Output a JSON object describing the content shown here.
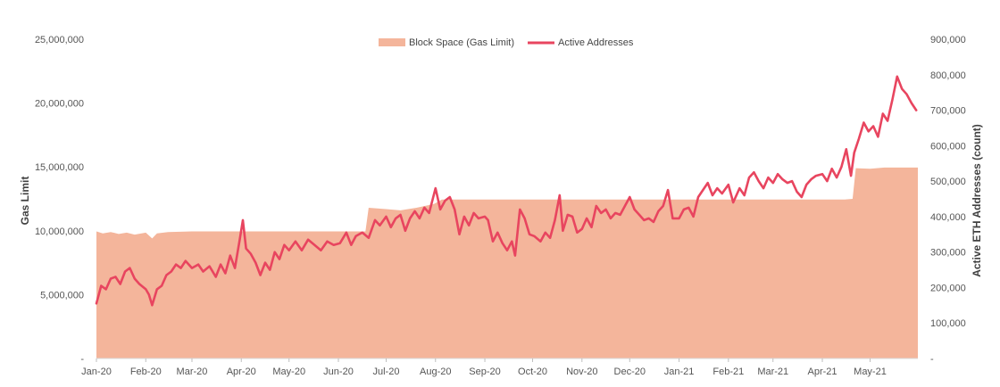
{
  "chart_data": {
    "type": "area",
    "legend_position": "top",
    "grid": false,
    "x_ticks": [
      "Jan-20",
      "Feb-20",
      "Mar-20",
      "Apr-20",
      "May-20",
      "Jun-20",
      "Jul-20",
      "Aug-20",
      "Sep-20",
      "Oct-20",
      "Nov-20",
      "Dec-20",
      "Jan-21",
      "Feb-21",
      "Mar-21",
      "Apr-21",
      "May-21"
    ],
    "x_range": [
      "2020-01-01",
      "2021-05-31"
    ],
    "y_left": {
      "label": "Gas Limit",
      "range": [
        0,
        25000000
      ],
      "ticks": [
        "-",
        "5,000,000",
        "10,000,000",
        "15,000,000",
        "20,000,000",
        "25,000,000"
      ]
    },
    "y_right": {
      "label": "Active ETH Addresses (count)",
      "range": [
        0,
        900000
      ],
      "ticks": [
        "-",
        "100,000",
        "200,000",
        "300,000",
        "400,000",
        "500,000",
        "600,000",
        "700,000",
        "800,000",
        "900,000"
      ]
    },
    "series": [
      {
        "name": "Block Space (Gas Limit)",
        "type": "area",
        "axis": "left",
        "color": "#F4B59B",
        "points": [
          [
            "2020-01-01",
            9950000
          ],
          [
            "2020-01-05",
            9800000
          ],
          [
            "2020-01-10",
            9900000
          ],
          [
            "2020-01-15",
            9750000
          ],
          [
            "2020-01-20",
            9850000
          ],
          [
            "2020-01-25",
            9700000
          ],
          [
            "2020-02-01",
            9850000
          ],
          [
            "2020-02-05",
            9400000
          ],
          [
            "2020-02-08",
            9800000
          ],
          [
            "2020-02-15",
            9900000
          ],
          [
            "2020-03-01",
            9950000
          ],
          [
            "2020-04-01",
            9950000
          ],
          [
            "2020-05-01",
            9950000
          ],
          [
            "2020-06-01",
            9950000
          ],
          [
            "2020-06-18",
            9950000
          ],
          [
            "2020-06-20",
            11800000
          ],
          [
            "2020-07-01",
            11700000
          ],
          [
            "2020-07-10",
            11600000
          ],
          [
            "2020-07-20",
            11800000
          ],
          [
            "2020-07-31",
            12100000
          ],
          [
            "2020-08-05",
            12450000
          ],
          [
            "2020-09-01",
            12450000
          ],
          [
            "2020-10-01",
            12450000
          ],
          [
            "2020-11-01",
            12450000
          ],
          [
            "2020-12-01",
            12450000
          ],
          [
            "2021-01-01",
            12450000
          ],
          [
            "2021-02-01",
            12450000
          ],
          [
            "2021-03-01",
            12450000
          ],
          [
            "2021-04-01",
            12450000
          ],
          [
            "2021-04-15",
            12450000
          ],
          [
            "2021-04-20",
            12500000
          ],
          [
            "2021-04-22",
            14900000
          ],
          [
            "2021-05-01",
            14850000
          ],
          [
            "2021-05-10",
            14950000
          ],
          [
            "2021-05-31",
            14950000
          ]
        ]
      },
      {
        "name": "Active Addresses",
        "type": "line",
        "axis": "right",
        "color": "#E8455F",
        "points": [
          [
            "2020-01-01",
            155000
          ],
          [
            "2020-01-04",
            205000
          ],
          [
            "2020-01-07",
            195000
          ],
          [
            "2020-01-10",
            225000
          ],
          [
            "2020-01-13",
            230000
          ],
          [
            "2020-01-16",
            210000
          ],
          [
            "2020-01-19",
            245000
          ],
          [
            "2020-01-22",
            255000
          ],
          [
            "2020-01-25",
            225000
          ],
          [
            "2020-01-28",
            210000
          ],
          [
            "2020-02-01",
            195000
          ],
          [
            "2020-02-03",
            180000
          ],
          [
            "2020-02-05",
            150000
          ],
          [
            "2020-02-08",
            195000
          ],
          [
            "2020-02-11",
            205000
          ],
          [
            "2020-02-14",
            235000
          ],
          [
            "2020-02-17",
            245000
          ],
          [
            "2020-02-20",
            265000
          ],
          [
            "2020-02-23",
            255000
          ],
          [
            "2020-02-26",
            275000
          ],
          [
            "2020-03-01",
            255000
          ],
          [
            "2020-03-05",
            265000
          ],
          [
            "2020-03-08",
            245000
          ],
          [
            "2020-03-12",
            260000
          ],
          [
            "2020-03-16",
            230000
          ],
          [
            "2020-03-19",
            265000
          ],
          [
            "2020-03-22",
            240000
          ],
          [
            "2020-03-25",
            290000
          ],
          [
            "2020-03-28",
            255000
          ],
          [
            "2020-03-31",
            335000
          ],
          [
            "2020-04-02",
            390000
          ],
          [
            "2020-04-04",
            310000
          ],
          [
            "2020-04-07",
            295000
          ],
          [
            "2020-04-10",
            270000
          ],
          [
            "2020-04-13",
            235000
          ],
          [
            "2020-04-16",
            270000
          ],
          [
            "2020-04-19",
            250000
          ],
          [
            "2020-04-22",
            300000
          ],
          [
            "2020-04-25",
            280000
          ],
          [
            "2020-04-28",
            320000
          ],
          [
            "2020-05-01",
            305000
          ],
          [
            "2020-05-05",
            330000
          ],
          [
            "2020-05-09",
            305000
          ],
          [
            "2020-05-13",
            335000
          ],
          [
            "2020-05-17",
            320000
          ],
          [
            "2020-05-21",
            305000
          ],
          [
            "2020-05-25",
            330000
          ],
          [
            "2020-05-29",
            320000
          ],
          [
            "2020-06-02",
            325000
          ],
          [
            "2020-06-06",
            355000
          ],
          [
            "2020-06-09",
            320000
          ],
          [
            "2020-06-12",
            345000
          ],
          [
            "2020-06-16",
            355000
          ],
          [
            "2020-06-20",
            340000
          ],
          [
            "2020-06-24",
            390000
          ],
          [
            "2020-06-27",
            375000
          ],
          [
            "2020-07-01",
            400000
          ],
          [
            "2020-07-04",
            370000
          ],
          [
            "2020-07-07",
            395000
          ],
          [
            "2020-07-10",
            405000
          ],
          [
            "2020-07-13",
            360000
          ],
          [
            "2020-07-16",
            395000
          ],
          [
            "2020-07-19",
            415000
          ],
          [
            "2020-07-22",
            395000
          ],
          [
            "2020-07-25",
            425000
          ],
          [
            "2020-07-28",
            410000
          ],
          [
            "2020-08-01",
            480000
          ],
          [
            "2020-08-04",
            420000
          ],
          [
            "2020-08-07",
            445000
          ],
          [
            "2020-08-10",
            455000
          ],
          [
            "2020-08-13",
            420000
          ],
          [
            "2020-08-16",
            350000
          ],
          [
            "2020-08-19",
            400000
          ],
          [
            "2020-08-22",
            375000
          ],
          [
            "2020-08-25",
            410000
          ],
          [
            "2020-08-28",
            395000
          ],
          [
            "2020-09-01",
            400000
          ],
          [
            "2020-09-03",
            390000
          ],
          [
            "2020-09-06",
            330000
          ],
          [
            "2020-09-09",
            355000
          ],
          [
            "2020-09-12",
            325000
          ],
          [
            "2020-09-15",
            305000
          ],
          [
            "2020-09-18",
            330000
          ],
          [
            "2020-09-20",
            290000
          ],
          [
            "2020-09-23",
            420000
          ],
          [
            "2020-09-26",
            395000
          ],
          [
            "2020-09-29",
            350000
          ],
          [
            "2020-10-02",
            345000
          ],
          [
            "2020-10-06",
            330000
          ],
          [
            "2020-10-09",
            355000
          ],
          [
            "2020-10-12",
            340000
          ],
          [
            "2020-10-15",
            390000
          ],
          [
            "2020-10-18",
            460000
          ],
          [
            "2020-10-20",
            360000
          ],
          [
            "2020-10-23",
            405000
          ],
          [
            "2020-10-26",
            400000
          ],
          [
            "2020-10-29",
            355000
          ],
          [
            "2020-11-01",
            365000
          ],
          [
            "2020-11-04",
            395000
          ],
          [
            "2020-11-07",
            370000
          ],
          [
            "2020-11-10",
            430000
          ],
          [
            "2020-11-13",
            410000
          ],
          [
            "2020-11-16",
            420000
          ],
          [
            "2020-11-19",
            395000
          ],
          [
            "2020-11-22",
            410000
          ],
          [
            "2020-11-25",
            405000
          ],
          [
            "2020-11-28",
            430000
          ],
          [
            "2020-12-01",
            455000
          ],
          [
            "2020-12-04",
            420000
          ],
          [
            "2020-12-07",
            405000
          ],
          [
            "2020-12-10",
            390000
          ],
          [
            "2020-12-13",
            395000
          ],
          [
            "2020-12-16",
            385000
          ],
          [
            "2020-12-19",
            415000
          ],
          [
            "2020-12-22",
            430000
          ],
          [
            "2020-12-25",
            475000
          ],
          [
            "2020-12-28",
            395000
          ],
          [
            "2021-01-01",
            395000
          ],
          [
            "2021-01-04",
            420000
          ],
          [
            "2021-01-07",
            425000
          ],
          [
            "2021-01-10",
            400000
          ],
          [
            "2021-01-13",
            455000
          ],
          [
            "2021-01-16",
            475000
          ],
          [
            "2021-01-19",
            495000
          ],
          [
            "2021-01-22",
            460000
          ],
          [
            "2021-01-25",
            480000
          ],
          [
            "2021-01-28",
            465000
          ],
          [
            "2021-02-01",
            490000
          ],
          [
            "2021-02-04",
            440000
          ],
          [
            "2021-02-08",
            480000
          ],
          [
            "2021-02-11",
            460000
          ],
          [
            "2021-02-14",
            510000
          ],
          [
            "2021-02-17",
            525000
          ],
          [
            "2021-02-20",
            500000
          ],
          [
            "2021-02-23",
            480000
          ],
          [
            "2021-02-26",
            510000
          ],
          [
            "2021-03-01",
            495000
          ],
          [
            "2021-03-04",
            520000
          ],
          [
            "2021-03-07",
            505000
          ],
          [
            "2021-03-10",
            495000
          ],
          [
            "2021-03-13",
            500000
          ],
          [
            "2021-03-16",
            470000
          ],
          [
            "2021-03-19",
            455000
          ],
          [
            "2021-03-22",
            490000
          ],
          [
            "2021-03-25",
            505000
          ],
          [
            "2021-03-28",
            515000
          ],
          [
            "2021-04-01",
            520000
          ],
          [
            "2021-04-04",
            500000
          ],
          [
            "2021-04-07",
            535000
          ],
          [
            "2021-04-10",
            510000
          ],
          [
            "2021-04-13",
            540000
          ],
          [
            "2021-04-16",
            590000
          ],
          [
            "2021-04-19",
            515000
          ],
          [
            "2021-04-21",
            580000
          ],
          [
            "2021-04-24",
            620000
          ],
          [
            "2021-04-27",
            665000
          ],
          [
            "2021-04-30",
            640000
          ],
          [
            "2021-05-03",
            655000
          ],
          [
            "2021-05-06",
            625000
          ],
          [
            "2021-05-09",
            690000
          ],
          [
            "2021-05-12",
            670000
          ],
          [
            "2021-05-15",
            730000
          ],
          [
            "2021-05-18",
            795000
          ],
          [
            "2021-05-21",
            760000
          ],
          [
            "2021-05-24",
            745000
          ],
          [
            "2021-05-27",
            720000
          ],
          [
            "2021-05-30",
            700000
          ]
        ]
      }
    ]
  }
}
